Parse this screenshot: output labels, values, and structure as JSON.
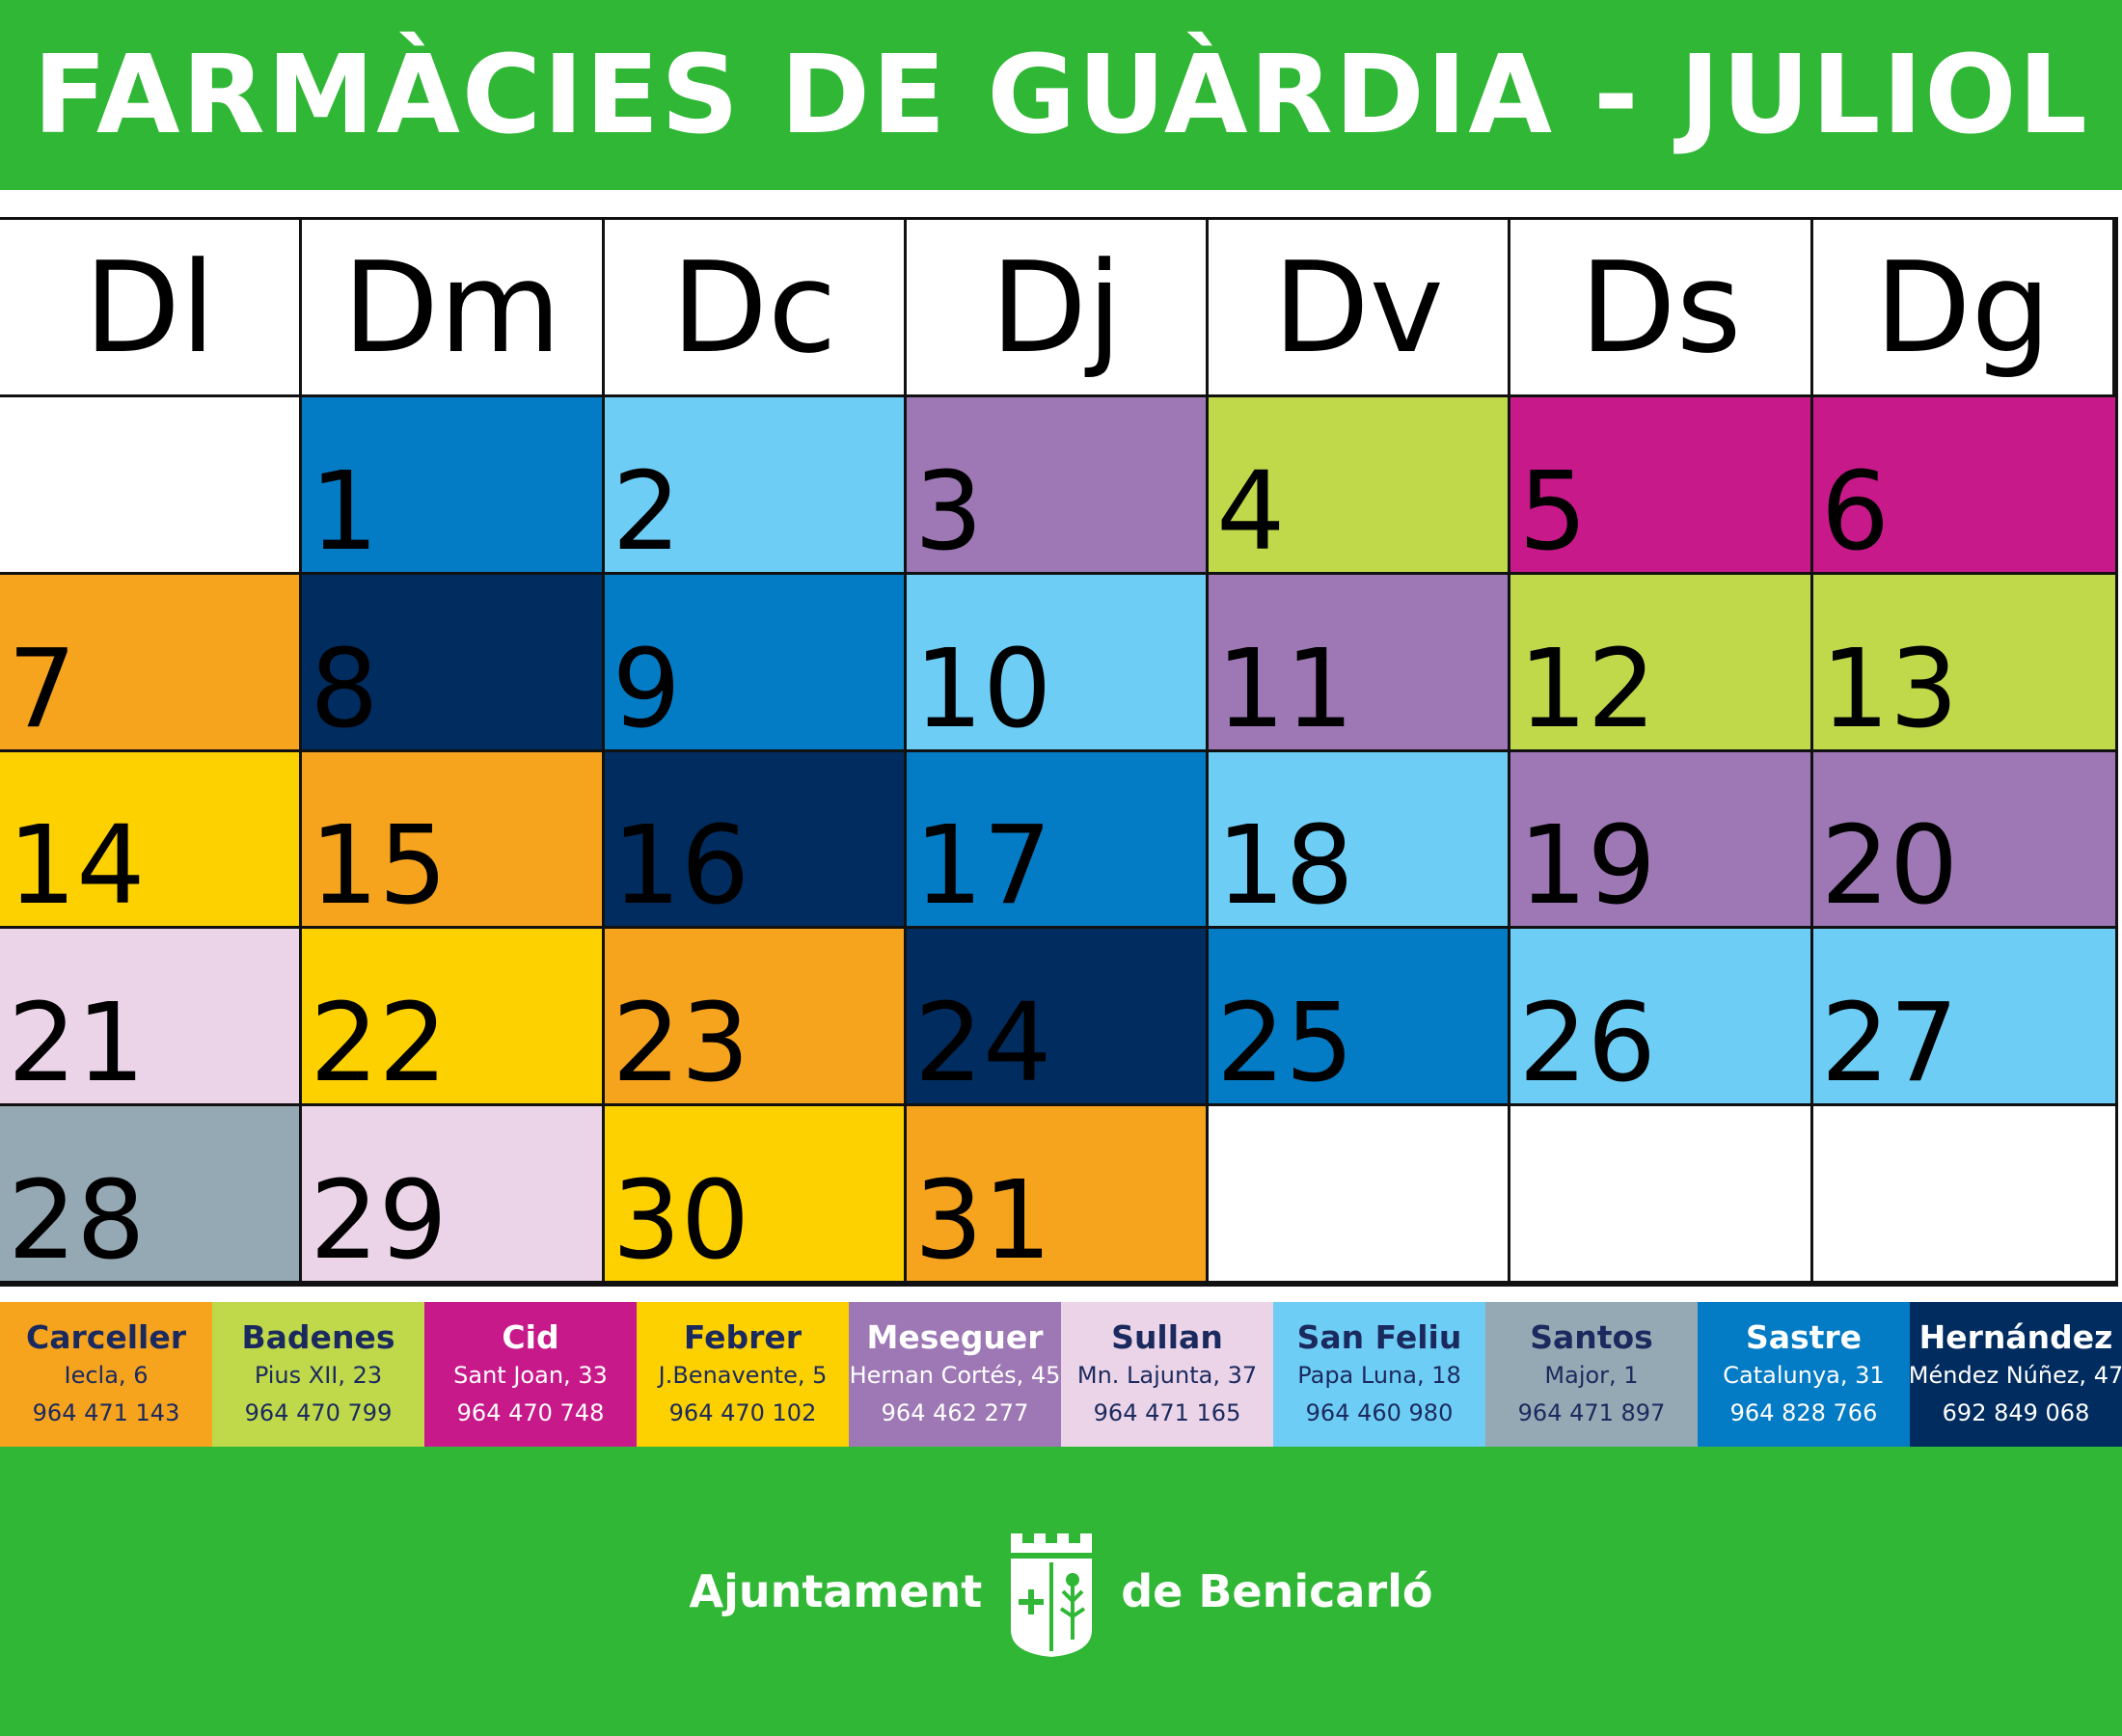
{
  "title": "FARMÀCIES DE GUÀRDIA - JULIOL",
  "weekdays": [
    "Dl",
    "Dm",
    "Dc",
    "Dj",
    "Dv",
    "Ds",
    "Dg"
  ],
  "colors": {
    "carceller": "#f6a31e",
    "badenes": "#bfd94b",
    "cid": "#c8198a",
    "febrer": "#fdd100",
    "meseguer": "#9e78b5",
    "sullan": "#ebd4e8",
    "sanfeliu": "#6dcdf5",
    "santos": "#94a9b4",
    "sastre": "#047bc5",
    "hernandez": "#002c5f",
    "empty": "#ffffff",
    "brand_green": "#31b736"
  },
  "days": [
    {
      "day": "",
      "pharmacy": "empty"
    },
    {
      "day": "1",
      "pharmacy": "sastre"
    },
    {
      "day": "2",
      "pharmacy": "sanfeliu"
    },
    {
      "day": "3",
      "pharmacy": "meseguer"
    },
    {
      "day": "4",
      "pharmacy": "badenes"
    },
    {
      "day": "5",
      "pharmacy": "cid"
    },
    {
      "day": "6",
      "pharmacy": "cid"
    },
    {
      "day": "7",
      "pharmacy": "carceller"
    },
    {
      "day": "8",
      "pharmacy": "hernandez"
    },
    {
      "day": "9",
      "pharmacy": "sastre"
    },
    {
      "day": "10",
      "pharmacy": "sanfeliu"
    },
    {
      "day": "11",
      "pharmacy": "meseguer"
    },
    {
      "day": "12",
      "pharmacy": "badenes"
    },
    {
      "day": "13",
      "pharmacy": "badenes"
    },
    {
      "day": "14",
      "pharmacy": "febrer"
    },
    {
      "day": "15",
      "pharmacy": "carceller"
    },
    {
      "day": "16",
      "pharmacy": "hernandez"
    },
    {
      "day": "17",
      "pharmacy": "sastre"
    },
    {
      "day": "18",
      "pharmacy": "sanfeliu"
    },
    {
      "day": "19",
      "pharmacy": "meseguer"
    },
    {
      "day": "20",
      "pharmacy": "meseguer"
    },
    {
      "day": "21",
      "pharmacy": "sullan"
    },
    {
      "day": "22",
      "pharmacy": "febrer"
    },
    {
      "day": "23",
      "pharmacy": "carceller"
    },
    {
      "day": "24",
      "pharmacy": "hernandez"
    },
    {
      "day": "25",
      "pharmacy": "sastre"
    },
    {
      "day": "26",
      "pharmacy": "sanfeliu"
    },
    {
      "day": "27",
      "pharmacy": "sanfeliu"
    },
    {
      "day": "28",
      "pharmacy": "santos"
    },
    {
      "day": "29",
      "pharmacy": "sullan"
    },
    {
      "day": "30",
      "pharmacy": "febrer"
    },
    {
      "day": "31",
      "pharmacy": "carceller"
    },
    {
      "day": "",
      "pharmacy": "empty"
    },
    {
      "day": "",
      "pharmacy": "empty"
    },
    {
      "day": "",
      "pharmacy": "empty"
    }
  ],
  "pharmacies": [
    {
      "key": "carceller",
      "name": "Carceller",
      "address": "Iecla, 6",
      "phone": "964 471 143",
      "name_color": "#1b2a5e",
      "text_color": "#1b2a5e"
    },
    {
      "key": "badenes",
      "name": "Badenes",
      "address": "Pius XII, 23",
      "phone": "964 470 799",
      "name_color": "#1b2a5e",
      "text_color": "#1b2a5e"
    },
    {
      "key": "cid",
      "name": "Cid",
      "address": "Sant Joan, 33",
      "phone": "964 470 748",
      "name_color": "#ffffff",
      "text_color": "#ffffff"
    },
    {
      "key": "febrer",
      "name": "Febrer",
      "address": "J.Benavente, 5",
      "phone": "964 470 102",
      "name_color": "#1b2a5e",
      "text_color": "#1b2a5e"
    },
    {
      "key": "meseguer",
      "name": "Meseguer",
      "address": "Hernan Cortés, 45",
      "phone": "964 462 277",
      "name_color": "#ffffff",
      "text_color": "#ffffff"
    },
    {
      "key": "sullan",
      "name": "Sullan",
      "address": "Mn. Lajunta, 37",
      "phone": "964 471 165",
      "name_color": "#1b2a5e",
      "text_color": "#1b2a5e"
    },
    {
      "key": "sanfeliu",
      "name": "San Feliu",
      "address": "Papa Luna, 18",
      "phone": "964 460 980",
      "name_color": "#1b2a5e",
      "text_color": "#1b2a5e"
    },
    {
      "key": "santos",
      "name": "Santos",
      "address": "Major, 1",
      "phone": "964 471 897",
      "name_color": "#1b2a5e",
      "text_color": "#1b2a5e"
    },
    {
      "key": "sastre",
      "name": "Sastre",
      "address": "Catalunya, 31",
      "phone": "964 828 766",
      "name_color": "#ffffff",
      "text_color": "#ffffff"
    },
    {
      "key": "hernandez",
      "name": "Hernández",
      "address": "Méndez Núñez, 47",
      "phone": "692 849 068",
      "name_color": "#ffffff",
      "text_color": "#ffffff"
    }
  ],
  "footer": {
    "left_text": "Ajuntament",
    "right_text": "de Benicarló"
  }
}
